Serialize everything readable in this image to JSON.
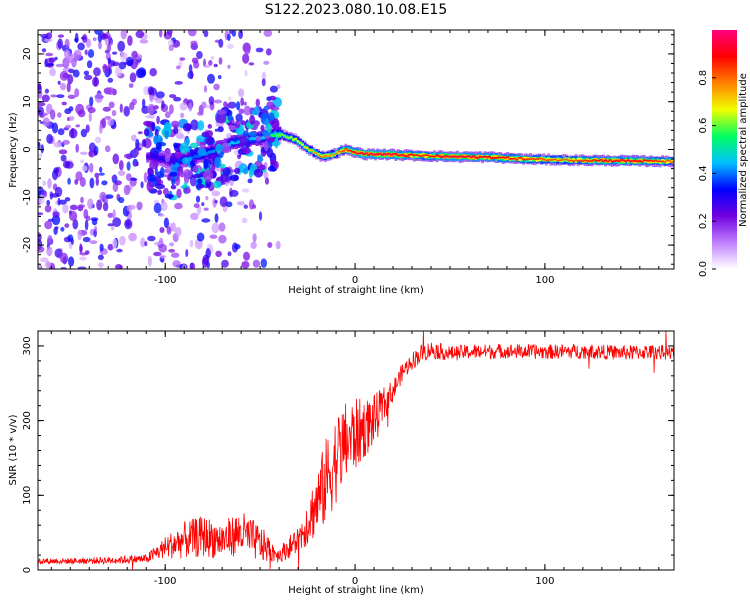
{
  "figure": {
    "title": "S122.2023.080.10.08.E15"
  },
  "chart_data": [
    {
      "type": "heatmap",
      "xlabel": "Height of straight line (km)",
      "ylabel": "Frequency (Hz)",
      "xlim": [
        -167,
        168
      ],
      "ylim": [
        -25,
        25
      ],
      "x_ticks": [
        -100,
        0,
        100
      ],
      "y_ticks": [
        -20,
        -10,
        0,
        10,
        20
      ],
      "colorbar": {
        "label": "Normalized spectral amplitude",
        "range": [
          0,
          1
        ],
        "ticks": [
          0.0,
          0.2,
          0.4,
          0.6,
          0.8
        ],
        "colormap": [
          "#ffffff",
          "#c080ff",
          "#7000e0",
          "#0000ff",
          "#00c0ff",
          "#00ff60",
          "#f0ff00",
          "#ff8000",
          "#ff0000",
          "#ff0080"
        ]
      },
      "ridge": {
        "x": [
          -110,
          -95,
          -80,
          -65,
          -50,
          -40,
          -32,
          -25,
          -18,
          -12,
          -6,
          -2,
          5,
          15,
          25,
          35,
          50,
          70,
          90,
          110,
          130,
          150,
          168
        ],
        "y": [
          -1.5,
          -2.5,
          -1.0,
          1.5,
          2.5,
          3.2,
          2.0,
          0.0,
          -1.5,
          -1.0,
          0.0,
          -0.5,
          -1.0,
          -1.0,
          -1.2,
          -1.3,
          -1.5,
          -1.6,
          -2.0,
          -2.2,
          -2.3,
          -2.4,
          -2.5
        ],
        "amplitude": [
          0.25,
          0.35,
          0.4,
          0.45,
          0.45,
          0.6,
          0.65,
          0.7,
          0.8,
          0.75,
          0.85,
          0.9,
          0.95,
          0.95,
          0.9,
          0.85,
          0.95,
          0.9,
          0.85,
          0.8,
          0.9,
          0.9,
          0.8
        ],
        "width_hz": [
          3.0,
          3.0,
          2.8,
          2.6,
          2.6,
          2.4,
          2.4,
          2.2,
          2.2,
          2.2,
          2.2,
          2.2,
          2.2,
          2.2,
          2.2,
          2.2,
          2.2,
          2.2,
          2.2,
          2.2,
          2.2,
          2.2,
          2.2
        ]
      },
      "noise_region": {
        "x": [
          -167,
          -40
        ],
        "y": [
          -25,
          25
        ],
        "amplitude_range": [
          0.05,
          0.35
        ]
      }
    },
    {
      "type": "line",
      "xlabel": "Height of straight line (km)",
      "ylabel": "SNR (10 * v/v)",
      "xlim": [
        -167,
        168
      ],
      "ylim": [
        0,
        320
      ],
      "x_ticks": [
        -100,
        0,
        100
      ],
      "y_ticks": [
        0,
        100,
        200,
        300
      ],
      "color": "#ff0000",
      "x": [
        -167,
        -150,
        -130,
        -110,
        -100,
        -90,
        -80,
        -70,
        -60,
        -50,
        -40,
        -30,
        -20,
        -15,
        -10,
        -5,
        0,
        5,
        10,
        15,
        20,
        25,
        30,
        35,
        40,
        50,
        60,
        80,
        100,
        120,
        140,
        160,
        168
      ],
      "y": [
        12,
        12,
        13,
        15,
        30,
        40,
        45,
        40,
        50,
        35,
        20,
        40,
        90,
        120,
        150,
        170,
        180,
        190,
        200,
        220,
        240,
        265,
        280,
        290,
        295,
        290,
        292,
        293,
        292,
        293,
        291,
        292,
        290
      ],
      "noise_amplitude": [
        4,
        4,
        5,
        6,
        15,
        25,
        28,
        25,
        30,
        25,
        10,
        20,
        45,
        60,
        60,
        55,
        50,
        40,
        35,
        25,
        15,
        12,
        12,
        12,
        12,
        10,
        10,
        10,
        10,
        10,
        10,
        10,
        10
      ]
    }
  ]
}
